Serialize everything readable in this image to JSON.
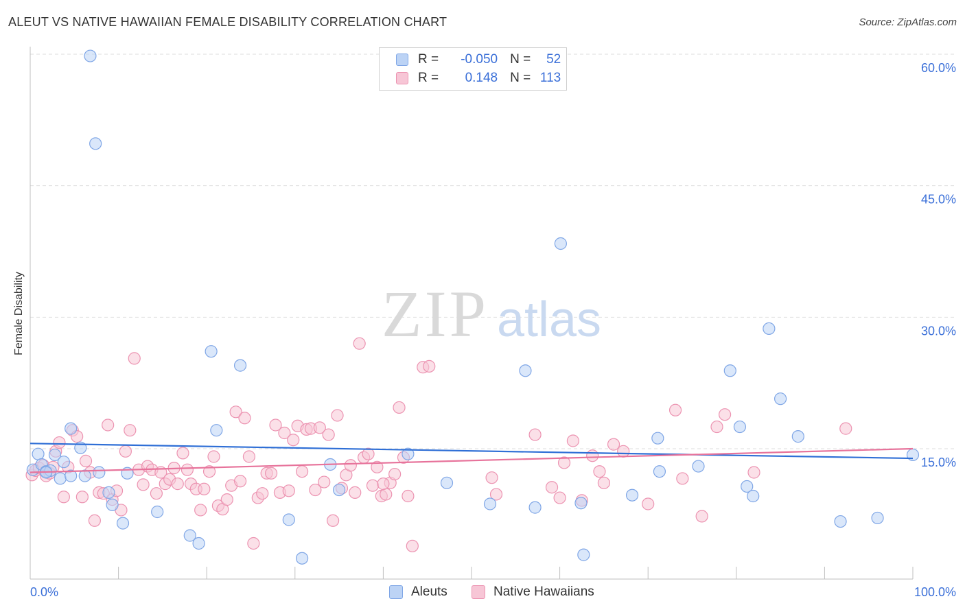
{
  "title": "ALEUT VS NATIVE HAWAIIAN FEMALE DISABILITY CORRELATION CHART",
  "source": "Source: ZipAtlas.com",
  "watermark": {
    "zip": "ZIP",
    "atlas": "atlas"
  },
  "legend": {
    "r_label": "R =",
    "n_label": "N =",
    "rows": [
      {
        "r": "-0.050",
        "n": "52",
        "fill": "#bcd3f5",
        "stroke": "#7fa6e6"
      },
      {
        "r": "0.148",
        "n": "113",
        "fill": "#f7c6d6",
        "stroke": "#ec93b1"
      }
    ]
  },
  "bottom_legend": [
    {
      "label": "Aleuts",
      "fill": "#bcd3f5",
      "stroke": "#7fa6e6"
    },
    {
      "label": "Native Hawaiians",
      "fill": "#f7c6d6",
      "stroke": "#ec93b1"
    }
  ],
  "chart_data": {
    "type": "scatter",
    "title": "ALEUT VS NATIVE HAWAIIAN FEMALE DISABILITY CORRELATION CHART",
    "xlabel": "",
    "ylabel": "Female Disability",
    "xlim": [
      0,
      100
    ],
    "ylim": [
      0,
      60
    ],
    "x_tick_labels": [
      "0.0%",
      "100.0%"
    ],
    "y_ticks": [
      15,
      30,
      45,
      60
    ],
    "y_tick_labels": [
      "15.0%",
      "30.0%",
      "45.0%",
      "60.0%"
    ],
    "grid": true,
    "colors": {
      "aleut": "#2f6fd6",
      "hawaiian": "#e7739b",
      "tick_text": "#3a6fd8"
    },
    "series": [
      {
        "name": "Aleuts",
        "color": "#2f6fd6",
        "trend": {
          "x": [
            0,
            100
          ],
          "y": [
            15.6,
            13.9
          ]
        },
        "points": [
          [
            0.3,
            12.6
          ],
          [
            0.9,
            14.4
          ],
          [
            1.3,
            13.2
          ],
          [
            1.8,
            12.4
          ],
          [
            2.3,
            12.5
          ],
          [
            2.8,
            14.3
          ],
          [
            3.4,
            11.6
          ],
          [
            3.8,
            13.5
          ],
          [
            4.6,
            11.9
          ],
          [
            4.6,
            17.3
          ],
          [
            5.7,
            15.1
          ],
          [
            6.2,
            11.9
          ],
          [
            7.8,
            12.3
          ],
          [
            6.8,
            59.8
          ],
          [
            7.4,
            49.8
          ],
          [
            9.3,
            8.6
          ],
          [
            10.5,
            6.5
          ],
          [
            11.0,
            12.2
          ],
          [
            14.4,
            7.8
          ],
          [
            18.1,
            5.1
          ],
          [
            19.1,
            4.2
          ],
          [
            20.5,
            26.1
          ],
          [
            21.1,
            17.1
          ],
          [
            23.8,
            24.5
          ],
          [
            29.3,
            6.9
          ],
          [
            30.8,
            2.5
          ],
          [
            34.0,
            13.2
          ],
          [
            35.0,
            10.3
          ],
          [
            42.8,
            14.4
          ],
          [
            47.2,
            11.1
          ],
          [
            52.1,
            8.7
          ],
          [
            56.1,
            23.9
          ],
          [
            57.2,
            8.3
          ],
          [
            60.1,
            38.4
          ],
          [
            62.4,
            8.8
          ],
          [
            62.7,
            2.9
          ],
          [
            68.2,
            9.7
          ],
          [
            71.1,
            16.2
          ],
          [
            71.3,
            12.4
          ],
          [
            75.7,
            13.0
          ],
          [
            79.3,
            23.9
          ],
          [
            80.4,
            17.5
          ],
          [
            81.2,
            10.7
          ],
          [
            81.9,
            9.6
          ],
          [
            83.7,
            28.7
          ],
          [
            85.0,
            20.7
          ],
          [
            87.0,
            16.4
          ],
          [
            91.8,
            6.7
          ],
          [
            96.0,
            7.1
          ],
          [
            100.0,
            14.3
          ],
          [
            8.9,
            10.0
          ],
          [
            1.8,
            12.3
          ]
        ]
      },
      {
        "name": "Native Hawaiians",
        "color": "#e7739b",
        "trend": {
          "x": [
            0,
            100
          ],
          "y": [
            12.3,
            15.0
          ]
        },
        "points": [
          [
            0.2,
            12.0
          ],
          [
            0.6,
            12.5
          ],
          [
            1.0,
            12.8
          ],
          [
            1.5,
            13.1
          ],
          [
            1.8,
            11.9
          ],
          [
            2.2,
            12.2
          ],
          [
            2.6,
            12.9
          ],
          [
            2.9,
            14.7
          ],
          [
            3.3,
            15.7
          ],
          [
            3.8,
            9.5
          ],
          [
            4.3,
            12.9
          ],
          [
            4.8,
            17.1
          ],
          [
            5.3,
            16.4
          ],
          [
            5.9,
            9.5
          ],
          [
            6.3,
            13.6
          ],
          [
            6.8,
            12.3
          ],
          [
            7.3,
            6.8
          ],
          [
            7.8,
            10.0
          ],
          [
            8.3,
            9.9
          ],
          [
            8.8,
            17.7
          ],
          [
            9.3,
            9.2
          ],
          [
            9.8,
            10.2
          ],
          [
            10.3,
            8.0
          ],
          [
            10.8,
            14.7
          ],
          [
            11.3,
            17.1
          ],
          [
            11.8,
            25.3
          ],
          [
            12.3,
            12.6
          ],
          [
            12.8,
            10.9
          ],
          [
            13.3,
            13.0
          ],
          [
            13.8,
            12.6
          ],
          [
            14.3,
            9.9
          ],
          [
            14.8,
            12.3
          ],
          [
            15.3,
            11.0
          ],
          [
            15.8,
            11.5
          ],
          [
            16.3,
            12.8
          ],
          [
            16.7,
            11.0
          ],
          [
            17.3,
            14.5
          ],
          [
            17.8,
            12.6
          ],
          [
            18.2,
            11.0
          ],
          [
            18.8,
            10.4
          ],
          [
            19.3,
            8.0
          ],
          [
            19.7,
            10.4
          ],
          [
            20.3,
            12.4
          ],
          [
            20.8,
            14.1
          ],
          [
            21.3,
            8.5
          ],
          [
            21.8,
            8.1
          ],
          [
            22.3,
            9.2
          ],
          [
            22.8,
            10.8
          ],
          [
            23.3,
            19.2
          ],
          [
            23.8,
            11.3
          ],
          [
            24.3,
            18.5
          ],
          [
            24.8,
            14.1
          ],
          [
            25.3,
            4.2
          ],
          [
            25.8,
            9.4
          ],
          [
            26.3,
            9.9
          ],
          [
            26.8,
            12.2
          ],
          [
            27.3,
            12.2
          ],
          [
            27.8,
            17.7
          ],
          [
            28.3,
            10.0
          ],
          [
            28.8,
            16.8
          ],
          [
            29.3,
            10.2
          ],
          [
            29.8,
            16.0
          ],
          [
            30.3,
            17.6
          ],
          [
            30.8,
            12.4
          ],
          [
            31.3,
            17.2
          ],
          [
            31.8,
            17.3
          ],
          [
            32.3,
            10.3
          ],
          [
            32.8,
            17.4
          ],
          [
            33.3,
            11.2
          ],
          [
            33.8,
            16.6
          ],
          [
            34.3,
            6.8
          ],
          [
            34.8,
            18.8
          ],
          [
            35.3,
            10.5
          ],
          [
            35.8,
            12.0
          ],
          [
            36.3,
            13.1
          ],
          [
            36.8,
            10.0
          ],
          [
            37.3,
            27.0
          ],
          [
            37.8,
            14.0
          ],
          [
            38.3,
            14.4
          ],
          [
            38.8,
            10.8
          ],
          [
            39.3,
            12.9
          ],
          [
            39.8,
            9.6
          ],
          [
            40.3,
            9.8
          ],
          [
            40.8,
            11.1
          ],
          [
            41.3,
            12.1
          ],
          [
            41.8,
            19.7
          ],
          [
            42.3,
            14.0
          ],
          [
            42.8,
            9.6
          ],
          [
            43.3,
            3.9
          ],
          [
            44.5,
            24.3
          ],
          [
            45.2,
            24.4
          ],
          [
            52.3,
            11.7
          ],
          [
            52.8,
            9.8
          ],
          [
            57.2,
            16.6
          ],
          [
            59.1,
            10.6
          ],
          [
            60.0,
            9.4
          ],
          [
            60.5,
            13.4
          ],
          [
            61.5,
            15.9
          ],
          [
            62.5,
            9.1
          ],
          [
            63.7,
            14.2
          ],
          [
            64.5,
            12.4
          ],
          [
            65.0,
            11.1
          ],
          [
            66.1,
            15.5
          ],
          [
            67.2,
            14.7
          ],
          [
            70.0,
            8.7
          ],
          [
            73.1,
            19.4
          ],
          [
            73.9,
            11.6
          ],
          [
            76.1,
            7.3
          ],
          [
            77.8,
            17.5
          ],
          [
            78.7,
            18.9
          ],
          [
            82.0,
            12.3
          ],
          [
            92.4,
            17.3
          ],
          [
            40.0,
            11.0
          ]
        ]
      }
    ]
  }
}
